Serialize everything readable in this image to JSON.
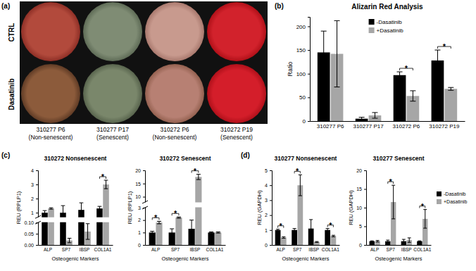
{
  "panel_a": {
    "panel": "(a)",
    "rows": [
      "CTRL",
      "Dasatinib"
    ],
    "columns": [
      {
        "label": "310277 P6",
        "note": "(Non-senescent)"
      },
      {
        "label": "310277 P17",
        "note": "(Senescent)"
      },
      {
        "label": "310272 P6",
        "note": "(Non-senescent)"
      },
      {
        "label": "310272 P19",
        "note": "(Senescent)"
      }
    ]
  },
  "chart_data": [
    {
      "panel": "(b)",
      "type": "bar",
      "title": "Alizarin Red Analysis",
      "y_label": "Ratio",
      "categories": [
        "310277 P6",
        "310277 P17",
        "310272 P6",
        "310272 P19"
      ],
      "series": [
        {
          "name": "-Dasatinib",
          "color": "#000000",
          "values": [
            145,
            5,
            97,
            128
          ],
          "errors": [
            45,
            3,
            7,
            22
          ]
        },
        {
          "name": "+Dasatinib",
          "color": "#a6a6a6",
          "values": [
            142,
            12,
            53,
            68
          ],
          "errors": [
            70,
            6,
            11,
            3
          ]
        }
      ],
      "ylim": [
        0,
        220
      ],
      "yticks": [
        0,
        50,
        100,
        150,
        200
      ],
      "legend": "top",
      "annotations": [
        {
          "text": "*",
          "category": "310272 P6"
        },
        {
          "text": "*",
          "category": "310272 P19"
        }
      ]
    },
    {
      "panel": "(c)",
      "type": "bar",
      "title": "310272 Nonsenescent",
      "y_label": "REU (RPLP1)",
      "x_label": "Osteogenic Markers",
      "categories": [
        "ALP",
        "SP7",
        "IBSP",
        "COL1A1"
      ],
      "series": [
        {
          "name": "-Dasatinib",
          "color": "#000000",
          "values": [
            1.0,
            1.0,
            1.2,
            1.3
          ],
          "errors": [
            0.15,
            0.5,
            0.5,
            0.15
          ]
        },
        {
          "name": "+Dasatinib",
          "color": "#a6a6a6",
          "values": [
            1.3,
            0.02,
            0.06,
            3.0
          ],
          "errors": [
            0.05,
            0.01,
            0.035,
            0.3
          ]
        }
      ],
      "ylim": [
        0,
        4
      ],
      "ybreak": [
        0.1,
        0.7
      ],
      "yticks": [
        {
          "value": 0,
          "label": "0.00"
        },
        0.05,
        {
          "value": 0.1,
          "label": "0.10"
        },
        1,
        2,
        3,
        4
      ],
      "annotations": [
        {
          "text": "*",
          "category": "COL1A1"
        }
      ]
    },
    {
      "type": "bar",
      "title": "310272 Senescent",
      "y_label": "REU (RPLP1)",
      "x_label": "Osteogenic Markers",
      "categories": [
        "ALP",
        "SP7",
        "IBSP",
        "COL1A1"
      ],
      "series": [
        {
          "name": "-Dasatinib",
          "color": "#000000",
          "values": [
            1.0,
            1.0,
            1.3,
            1.0
          ],
          "errors": [
            0.1,
            0.3,
            0.7,
            0.05
          ]
        },
        {
          "name": "+Dasatinib",
          "color": "#a6a6a6",
          "values": [
            1.8,
            2.2,
            17.5,
            1.0
          ],
          "errors": [
            0.1,
            0.05,
            1,
            0.05
          ]
        }
      ],
      "ylim": [
        0,
        20
      ],
      "ybreak": [
        3,
        8
      ],
      "yticks": [
        0,
        1,
        2,
        3,
        10,
        15,
        20
      ],
      "annotations": [
        {
          "text": "*",
          "category": "ALP"
        },
        {
          "text": "*",
          "category": "SP7"
        },
        {
          "text": "*",
          "category": "IBSP"
        }
      ]
    },
    {
      "panel": "(d)",
      "type": "bar",
      "title": "310277 Nonsenescent",
      "y_label": "REU (GAPDH)",
      "x_label": "Osteogenic Markers",
      "categories": [
        "ALP",
        "SP7",
        "IBSP",
        "COL1A1"
      ],
      "series": [
        {
          "name": "-Dasatinib",
          "color": "#000000",
          "values": [
            1,
            1,
            1.1,
            1
          ],
          "errors": [
            0.05,
            0.1,
            0.6,
            0.1
          ]
        },
        {
          "name": "+Dasatinib",
          "color": "#a6a6a6",
          "values": [
            0.5,
            4.0,
            0.2,
            0.6
          ],
          "errors": [
            0.05,
            0.7,
            0.03,
            0.05
          ]
        }
      ],
      "ylim": [
        0,
        5
      ],
      "yticks": [
        0,
        1,
        2,
        3,
        4,
        5
      ],
      "annotations": [
        {
          "text": "*",
          "category": "ALP"
        },
        {
          "text": "*",
          "category": "SP7"
        },
        {
          "text": "*",
          "category": "COL1A1"
        }
      ]
    },
    {
      "type": "bar",
      "title": "310277 Senescent",
      "y_label": "REU (GAPDH)",
      "x_label": "Osteogenic Markers",
      "categories": [
        "ALP",
        "SP7",
        "IBSP",
        "COL1A1"
      ],
      "series": [
        {
          "name": "-Dasatinib",
          "color": "#000000",
          "values": [
            1,
            1,
            1,
            1
          ],
          "errors": [
            0.1,
            0.3,
            0.5,
            0.1
          ]
        },
        {
          "name": "+Dasatinib",
          "color": "#a6a6a6",
          "values": [
            1.0,
            11.5,
            1.3,
            7.0
          ],
          "errors": [
            0.2,
            4.5,
            0.6,
            2.5
          ]
        }
      ],
      "ylim": [
        0,
        20
      ],
      "yticks": [
        0,
        5,
        10,
        15,
        20
      ],
      "legend": "right",
      "annotations": [
        {
          "text": "*",
          "category": "SP7"
        },
        {
          "text": "*",
          "category": "COL1A1"
        }
      ]
    }
  ]
}
